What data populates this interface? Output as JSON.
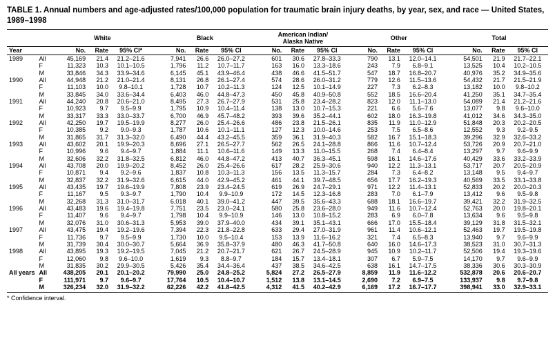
{
  "title": "TABLE 1. Annual numbers and age-adjusted rates/100,000 population for traumatic brain injury deaths, by year, sex, and race — United States, 1989–1998",
  "footnote": "* Confidence interval.",
  "groups": [
    "White",
    "Black",
    "American Indian/\nAlaska Native",
    "Other",
    "Total"
  ],
  "subheaders": {
    "year": "Year",
    "no": "No.",
    "rate": "Rate",
    "ci": "95% CI*",
    "ci_plain": "95% CI"
  },
  "colors": {
    "text": "#000000",
    "background": "#ffffff",
    "rule": "#000000"
  },
  "typography": {
    "title_pt": 11.5,
    "body_pt": 9,
    "family": "Arial"
  },
  "rows": [
    {
      "year": "1989",
      "sex": "All",
      "cells": [
        [
          "45,169",
          "21.4",
          "21.2–21.6"
        ],
        [
          "7,941",
          "26.6",
          "26.0–27.2"
        ],
        [
          "601",
          "30.6",
          "27.8–33.3"
        ],
        [
          "790",
          "13.1",
          "12.0–14.1"
        ],
        [
          "54,501",
          "21.9",
          "21.7–22.1"
        ]
      ]
    },
    {
      "year": "",
      "sex": "F",
      "cells": [
        [
          "11,323",
          "10.3",
          "10.1–10.5"
        ],
        [
          "1,796",
          "11.2",
          "10.7–11.7"
        ],
        [
          "163",
          "16.0",
          "13.3–18.6"
        ],
        [
          "243",
          "7.9",
          "6.8–9.1"
        ],
        [
          "13,525",
          "10.4",
          "10.2–10.5"
        ]
      ]
    },
    {
      "year": "",
      "sex": "M",
      "cells": [
        [
          "33,846",
          "34.3",
          "33.9–34.6"
        ],
        [
          "6,145",
          "45.1",
          "43.9–46.4"
        ],
        [
          "438",
          "46.6",
          "41.5–51.7"
        ],
        [
          "547",
          "18.7",
          "16.8–20.7"
        ],
        [
          "40,976",
          "35.2",
          "34.9–35.6"
        ]
      ]
    },
    {
      "year": "1990",
      "sex": "All",
      "cells": [
        [
          "44,948",
          "21.2",
          "21.0–21.4"
        ],
        [
          "8,131",
          "26.8",
          "26.1–27.4"
        ],
        [
          "574",
          "28.6",
          "26.0–31.2"
        ],
        [
          "779",
          "12.6",
          "11.5–13.6"
        ],
        [
          "54,432",
          "21.7",
          "21.5–21.9"
        ]
      ]
    },
    {
      "year": "",
      "sex": "F",
      "cells": [
        [
          "11,103",
          "10.0",
          "9.8–10.1"
        ],
        [
          "1,728",
          "10.7",
          "10.2–11.3"
        ],
        [
          "124",
          "12.5",
          "10.1–14.9"
        ],
        [
          "227",
          "7.3",
          "6.2–8.3"
        ],
        [
          "13,182",
          "10.0",
          "9.8–10.2"
        ]
      ]
    },
    {
      "year": "",
      "sex": "M",
      "cells": [
        [
          "33,845",
          "34.0",
          "33.6–34.4"
        ],
        [
          "6,403",
          "46.0",
          "44.8–47.3"
        ],
        [
          "450",
          "45.8",
          "40.9–50.8"
        ],
        [
          "552",
          "18.5",
          "16.6–20.4"
        ],
        [
          "41,250",
          "35.1",
          "34.7–35.4"
        ]
      ]
    },
    {
      "year": "1991",
      "sex": "All",
      "cells": [
        [
          "44,240",
          "20.8",
          "20.6–21.0"
        ],
        [
          "8,495",
          "27.3",
          "26.7–27.9"
        ],
        [
          "531",
          "25.8",
          "23.4–28.2"
        ],
        [
          "823",
          "12.0",
          "11.1–13.0"
        ],
        [
          "54,089",
          "21.4",
          "21.2–21.6"
        ]
      ]
    },
    {
      "year": "",
      "sex": "F",
      "cells": [
        [
          "10,923",
          "9.7",
          "9.5–9.9"
        ],
        [
          "1,795",
          "10.9",
          "10.4–11.4"
        ],
        [
          "138",
          "13.0",
          "10.7–15.3"
        ],
        [
          "221",
          "6.6",
          "5.6–7.6"
        ],
        [
          "13,077",
          "9.8",
          "9.6–10.0"
        ]
      ]
    },
    {
      "year": "",
      "sex": "M",
      "cells": [
        [
          "33,317",
          "33.3",
          "33.0–33.7"
        ],
        [
          "6,700",
          "46.9",
          "45.7–48.2"
        ],
        [
          "393",
          "39.6",
          "35.2–44.1"
        ],
        [
          "602",
          "18.0",
          "16.3–19.8"
        ],
        [
          "41,012",
          "34.6",
          "34.3–35.0"
        ]
      ]
    },
    {
      "year": "1992",
      "sex": "All",
      "cells": [
        [
          "42,250",
          "19.7",
          "19.5–19.9"
        ],
        [
          "8,277",
          "26.0",
          "25.4–26.6"
        ],
        [
          "486",
          "23.8",
          "21.5–26.1"
        ],
        [
          "835",
          "11.9",
          "11.0–12.9"
        ],
        [
          "51,848",
          "20.3",
          "20.2–20.5"
        ]
      ]
    },
    {
      "year": "",
      "sex": "F",
      "cells": [
        [
          "10,385",
          "9.2",
          "9.0–9.3"
        ],
        [
          "1,787",
          "10.6",
          "10.1–11.1"
        ],
        [
          "127",
          "12.3",
          "10.0–14.6"
        ],
        [
          "253",
          "7.5",
          "6.5–8.6"
        ],
        [
          "12,552",
          "9.3",
          "9.2–9.5"
        ]
      ]
    },
    {
      "year": "",
      "sex": "M",
      "cells": [
        [
          "31,865",
          "31.7",
          "31.3–32.0"
        ],
        [
          "6,490",
          "44.4",
          "43.2–45.5"
        ],
        [
          "359",
          "36.1",
          "31.9–40.3"
        ],
        [
          "582",
          "16.7",
          "15.1–18.3"
        ],
        [
          "39,296",
          "32.9",
          "32.6–33.2"
        ]
      ]
    },
    {
      "year": "1993",
      "sex": "All",
      "cells": [
        [
          "43,602",
          "20.1",
          "19.9–20.3"
        ],
        [
          "8,696",
          "27.1",
          "26.5–27.7"
        ],
        [
          "562",
          "26.5",
          "24.1–28.8"
        ],
        [
          "866",
          "11.6",
          "10.7–12.4"
        ],
        [
          "53,726",
          "20.9",
          "20.7–21.0"
        ]
      ]
    },
    {
      "year": "",
      "sex": "F",
      "cells": [
        [
          "10,996",
          "9.6",
          "9.4–9.7"
        ],
        [
          "1,884",
          "11.1",
          "10.6–11.6"
        ],
        [
          "149",
          "13.3",
          "11.0–15.5"
        ],
        [
          "268",
          "7.4",
          "6.4–8.4"
        ],
        [
          "13,297",
          "9.7",
          "9.6–9.9"
        ]
      ]
    },
    {
      "year": "",
      "sex": "M",
      "cells": [
        [
          "32,606",
          "32.2",
          "31.8–32.5"
        ],
        [
          "6,812",
          "46.0",
          "44.8–47.2"
        ],
        [
          "413",
          "40.7",
          "36.3–45.1"
        ],
        [
          "598",
          "16.1",
          "14.6–17.6"
        ],
        [
          "40,429",
          "33.6",
          "33.2–33.9"
        ]
      ]
    },
    {
      "year": "1994",
      "sex": "All",
      "cells": [
        [
          "43,708",
          "20.0",
          "19.9–20.2"
        ],
        [
          "8,452",
          "26.0",
          "25.4–26.6"
        ],
        [
          "617",
          "28.2",
          "25.9–30.6"
        ],
        [
          "940",
          "12.2",
          "11.3–13.1"
        ],
        [
          "53,717",
          "20.7",
          "20.5–20.9"
        ]
      ]
    },
    {
      "year": "",
      "sex": "F",
      "cells": [
        [
          "10,871",
          "9.4",
          "9.2–9.6"
        ],
        [
          "1,837",
          "10.8",
          "10.3–11.3"
        ],
        [
          "156",
          "13.5",
          "11.3–15.7"
        ],
        [
          "284",
          "7.3",
          "6.4–8.2"
        ],
        [
          "13,148",
          "9.5",
          "9.4–9.7"
        ]
      ]
    },
    {
      "year": "",
      "sex": "M",
      "cells": [
        [
          "32,837",
          "32.2",
          "31.9–32.6"
        ],
        [
          "6,615",
          "44.0",
          "42.9–45.2"
        ],
        [
          "461",
          "44.1",
          "39.7–48.5"
        ],
        [
          "656",
          "17.7",
          "16.2–19.3"
        ],
        [
          "40,569",
          "33.5",
          "33.1–33.8"
        ]
      ]
    },
    {
      "year": "1995",
      "sex": "All",
      "cells": [
        [
          "43,435",
          "19.7",
          "19.6–19.9"
        ],
        [
          "7,808",
          "23.9",
          "23.4–24.5"
        ],
        [
          "619",
          "26.9",
          "24.7–29.1"
        ],
        [
          "971",
          "12.2",
          "11.4–13.1"
        ],
        [
          "52,833",
          "20.2",
          "20.0–20.3"
        ]
      ]
    },
    {
      "year": "",
      "sex": "F",
      "cells": [
        [
          "11,167",
          "9.5",
          "9.3–9.7"
        ],
        [
          "1,790",
          "10.4",
          "9.9–10.9"
        ],
        [
          "172",
          "14.5",
          "12.3–16.8"
        ],
        [
          "283",
          "7.0",
          "6.1–7.9"
        ],
        [
          "13,412",
          "9.6",
          "9.5–9.8"
        ]
      ]
    },
    {
      "year": "",
      "sex": "M",
      "cells": [
        [
          "32,268",
          "31.3",
          "31.0–31.7"
        ],
        [
          "6,018",
          "40.1",
          "39.0–41.2"
        ],
        [
          "447",
          "39.5",
          "35.6–43.3"
        ],
        [
          "688",
          "18.1",
          "16.6–19.7"
        ],
        [
          "39,421",
          "32.2",
          "31.9–32.5"
        ]
      ]
    },
    {
      "year": "1996",
      "sex": "All",
      "cells": [
        [
          "43,483",
          "19.6",
          "19.4–19.8"
        ],
        [
          "7,751",
          "23.5",
          "23.0–24.1"
        ],
        [
          "580",
          "25.8",
          "23.6–28.0"
        ],
        [
          "949",
          "11.6",
          "10.7–12.4"
        ],
        [
          "52,763",
          "20.0",
          "19.8–20.1"
        ]
      ]
    },
    {
      "year": "",
      "sex": "F",
      "cells": [
        [
          "11,407",
          "9.6",
          "9.4–9.7"
        ],
        [
          "1,798",
          "10.4",
          "9.9–10.9"
        ],
        [
          "146",
          "13.0",
          "10.8–15.2"
        ],
        [
          "283",
          "6.9",
          "6.0–7.8"
        ],
        [
          "13,634",
          "9.6",
          "9.5–9.8"
        ]
      ]
    },
    {
      "year": "",
      "sex": "M",
      "cells": [
        [
          "32,076",
          "31.0",
          "30.6–31.3"
        ],
        [
          "5,953",
          "39.0",
          "37.9–40.0"
        ],
        [
          "434",
          "39.1",
          "35.1–43.1"
        ],
        [
          "666",
          "17.0",
          "15.5–18.4"
        ],
        [
          "39,129",
          "31.8",
          "31.5–32.1"
        ]
      ]
    },
    {
      "year": "1997",
      "sex": "All",
      "cells": [
        [
          "43,475",
          "19.4",
          "19.2–19.6"
        ],
        [
          "7,394",
          "22.3",
          "21.8–22.8"
        ],
        [
          "633",
          "29.4",
          "27.0–31.9"
        ],
        [
          "961",
          "11.4",
          "10.6–12.1"
        ],
        [
          "52,463",
          "19.7",
          "19.5–19.8"
        ]
      ]
    },
    {
      "year": "",
      "sex": "F",
      "cells": [
        [
          "11,736",
          "9.7",
          "9.5–9.9"
        ],
        [
          "1,730",
          "10.0",
          "9.5–10.4"
        ],
        [
          "153",
          "13.9",
          "11.6–16.2"
        ],
        [
          "321",
          "7.4",
          "6.5–8.3"
        ],
        [
          "13,940",
          "9.7",
          "9.6–9.9"
        ]
      ]
    },
    {
      "year": "",
      "sex": "M",
      "cells": [
        [
          "31,739",
          "30.4",
          "30.0–30.7"
        ],
        [
          "5,664",
          "36.9",
          "35.8–37.9"
        ],
        [
          "480",
          "46.3",
          "41.7–50.8"
        ],
        [
          "640",
          "16.0",
          "14.6–17.3"
        ],
        [
          "38,523",
          "31.0",
          "30.7–31.3"
        ]
      ]
    },
    {
      "year": "1998",
      "sex": "All",
      "cells": [
        [
          "43,895",
          "19.3",
          "19.2–19.5"
        ],
        [
          "7,045",
          "21.2",
          "20.7–21.7"
        ],
        [
          "621",
          "26.7",
          "24.5–28.9"
        ],
        [
          "945",
          "10.9",
          "10.2–11.7"
        ],
        [
          "52,506",
          "19.4",
          "19.3–19.6"
        ]
      ]
    },
    {
      "year": "",
      "sex": "F",
      "cells": [
        [
          "12,060",
          "9.8",
          "9.6–10.0"
        ],
        [
          "1,619",
          "9.3",
          "8.8–9.7"
        ],
        [
          "184",
          "15.7",
          "13.4–18.1"
        ],
        [
          "307",
          "6.7",
          "5.9–7.5"
        ],
        [
          "14,170",
          "9.7",
          "9.6–9.9"
        ]
      ]
    },
    {
      "year": "",
      "sex": "M",
      "cells": [
        [
          "31,835",
          "30.2",
          "29.9–30.5"
        ],
        [
          "5,426",
          "35.4",
          "34.4–36.4"
        ],
        [
          "437",
          "38.5",
          "34.6–42.5"
        ],
        [
          "638",
          "16.1",
          "14.7–17.5"
        ],
        [
          "38,336",
          "30.6",
          "30.3–30.9"
        ]
      ]
    },
    {
      "year": "All years",
      "sex": "All",
      "bold": true,
      "cells": [
        [
          "438,205",
          "20.1",
          "20.1–20.2"
        ],
        [
          "79,990",
          "25.0",
          "24.8–25.2"
        ],
        [
          "5,824",
          "27.2",
          "26.5–27.9"
        ],
        [
          "8,859",
          "11.9",
          "11.6–12.2"
        ],
        [
          "532,878",
          "20.6",
          "20.6–20.7"
        ]
      ]
    },
    {
      "year": "",
      "sex": "F",
      "bold": true,
      "cells": [
        [
          "111,971",
          "9.7",
          "9.6–9.7"
        ],
        [
          "17,764",
          "10.5",
          "10.4–10.7"
        ],
        [
          "1,512",
          "13.8",
          "13.1–14.5"
        ],
        [
          "2,690",
          "7.2",
          "6.9–7.5"
        ],
        [
          "133,937",
          "9.8",
          "9.7–9.8"
        ]
      ]
    },
    {
      "year": "",
      "sex": "M",
      "bold": true,
      "cells": [
        [
          "326,234",
          "32.0",
          "31.9–32.2"
        ],
        [
          "62,226",
          "42.2",
          "41.8–42.5"
        ],
        [
          "4,312",
          "41.5",
          "40.2–42.9"
        ],
        [
          "6,169",
          "17.2",
          "16.7–17.7"
        ],
        [
          "398,941",
          "33.0",
          "32.9–33.1"
        ]
      ]
    }
  ]
}
